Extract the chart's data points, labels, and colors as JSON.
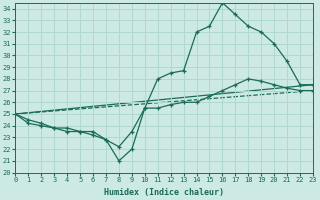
{
  "xlabel": "Humidex (Indice chaleur)",
  "xlim": [
    0,
    23
  ],
  "ylim": [
    20,
    34.5
  ],
  "xticks": [
    0,
    1,
    2,
    3,
    4,
    5,
    6,
    7,
    8,
    9,
    10,
    11,
    12,
    13,
    14,
    15,
    16,
    17,
    18,
    19,
    20,
    21,
    22,
    23
  ],
  "yticks": [
    20,
    21,
    22,
    23,
    24,
    25,
    26,
    27,
    28,
    29,
    30,
    31,
    32,
    33,
    34
  ],
  "bg_color": "#cce9e3",
  "line_color": "#1a6b5a",
  "grid_color": "#b0d8d0",
  "line1_x": [
    0,
    1,
    2,
    3,
    4,
    5,
    6,
    7,
    8,
    9,
    10,
    11,
    12,
    13,
    14,
    15,
    16,
    17,
    18,
    19,
    20,
    21,
    22,
    23
  ],
  "line1_y": [
    25.0,
    24.2,
    24.0,
    23.8,
    23.5,
    23.5,
    23.2,
    22.8,
    21.0,
    22.0,
    25.5,
    28.0,
    28.5,
    28.7,
    32.0,
    32.5,
    34.5,
    33.5,
    32.5,
    32.0,
    31.0,
    29.5,
    27.5,
    27.5
  ],
  "line2_x": [
    0,
    1,
    2,
    3,
    4,
    5,
    6,
    7,
    8,
    9,
    10,
    11,
    12,
    13,
    14,
    15,
    16,
    17,
    18,
    19,
    20,
    21,
    22,
    23
  ],
  "line2_y": [
    25.0,
    24.5,
    24.2,
    23.8,
    23.8,
    23.5,
    23.5,
    22.8,
    22.2,
    23.5,
    25.5,
    25.5,
    25.8,
    26.0,
    26.0,
    26.5,
    27.0,
    27.5,
    28.0,
    27.8,
    27.5,
    27.2,
    27.0,
    27.0
  ],
  "line3_x": [
    0,
    23
  ],
  "line3_y": [
    25.0,
    27.5
  ],
  "line4_x": [
    0,
    23
  ],
  "line4_y": [
    25.0,
    27.0
  ]
}
